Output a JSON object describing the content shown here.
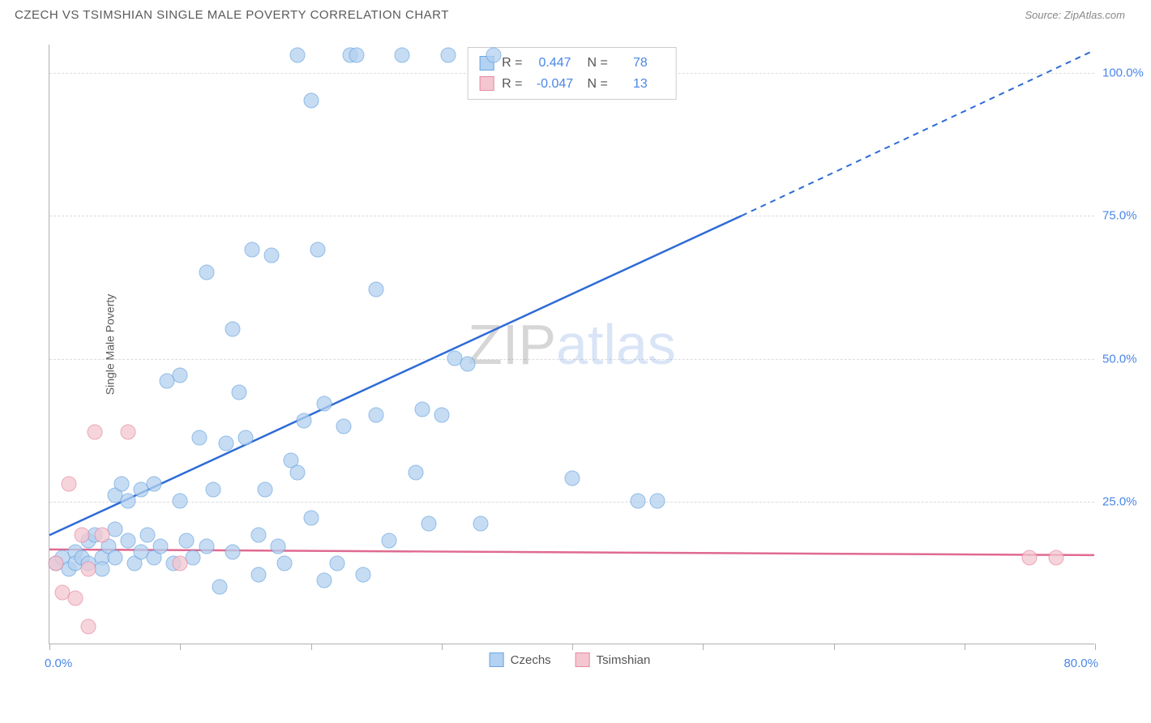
{
  "header": {
    "title": "CZECH VS TSIMSHIAN SINGLE MALE POVERTY CORRELATION CHART",
    "source_label": "Source: ",
    "source_name": "ZipAtlas.com"
  },
  "chart": {
    "type": "scatter",
    "ylabel": "Single Male Poverty",
    "xlim": [
      0,
      80
    ],
    "ylim": [
      0,
      105
    ],
    "xtick_positions_pct": [
      0,
      12.5,
      25,
      37.5,
      50,
      62.5,
      75,
      87.5,
      100
    ],
    "xaxis_min_label": "0.0%",
    "xaxis_max_label": "80.0%",
    "ytick_labels": [
      {
        "label": "25.0%",
        "value": 25
      },
      {
        "label": "50.0%",
        "value": 50
      },
      {
        "label": "75.0%",
        "value": 75
      },
      {
        "label": "100.0%",
        "value": 100
      }
    ],
    "grid_color": "#dcdcdc",
    "axis_color": "#b0b0b0",
    "background_color": "#ffffff",
    "watermark": {
      "part1": "Z",
      "part2": "IP",
      "part3": "atlas"
    },
    "series": [
      {
        "name": "Czechs",
        "legend_label": "Czechs",
        "marker_color": "#b3d1f0",
        "marker_border": "#6ca6e0",
        "line_color": "#2e6bd6",
        "r_label": "R = ",
        "r_value": "0.447",
        "n_label": "N = ",
        "n_value": "78",
        "trend": {
          "x1": 0,
          "y1": 19,
          "x2_solid": 53,
          "y2_solid": 75,
          "x2_dash": 80,
          "y2_dash": 104
        },
        "points": [
          {
            "x": 0.5,
            "y": 14
          },
          {
            "x": 1,
            "y": 15
          },
          {
            "x": 1.5,
            "y": 13
          },
          {
            "x": 2,
            "y": 16
          },
          {
            "x": 2,
            "y": 14
          },
          {
            "x": 2.5,
            "y": 15
          },
          {
            "x": 3,
            "y": 18
          },
          {
            "x": 3,
            "y": 14
          },
          {
            "x": 3.5,
            "y": 19
          },
          {
            "x": 4,
            "y": 15
          },
          {
            "x": 4,
            "y": 13
          },
          {
            "x": 4.5,
            "y": 17
          },
          {
            "x": 5,
            "y": 26
          },
          {
            "x": 5,
            "y": 20
          },
          {
            "x": 5,
            "y": 15
          },
          {
            "x": 5.5,
            "y": 28
          },
          {
            "x": 6,
            "y": 25
          },
          {
            "x": 6,
            "y": 18
          },
          {
            "x": 6.5,
            "y": 14
          },
          {
            "x": 7,
            "y": 27
          },
          {
            "x": 7,
            "y": 16
          },
          {
            "x": 7.5,
            "y": 19
          },
          {
            "x": 8,
            "y": 28
          },
          {
            "x": 8,
            "y": 15
          },
          {
            "x": 8.5,
            "y": 17
          },
          {
            "x": 9,
            "y": 46
          },
          {
            "x": 9.5,
            "y": 14
          },
          {
            "x": 10,
            "y": 47
          },
          {
            "x": 10,
            "y": 25
          },
          {
            "x": 10.5,
            "y": 18
          },
          {
            "x": 11,
            "y": 15
          },
          {
            "x": 11.5,
            "y": 36
          },
          {
            "x": 12,
            "y": 65
          },
          {
            "x": 12,
            "y": 17
          },
          {
            "x": 12.5,
            "y": 27
          },
          {
            "x": 13,
            "y": 10
          },
          {
            "x": 13.5,
            "y": 35
          },
          {
            "x": 14,
            "y": 55
          },
          {
            "x": 14,
            "y": 16
          },
          {
            "x": 14.5,
            "y": 44
          },
          {
            "x": 15,
            "y": 36
          },
          {
            "x": 15.5,
            "y": 69
          },
          {
            "x": 16,
            "y": 19
          },
          {
            "x": 16,
            "y": 12
          },
          {
            "x": 16.5,
            "y": 27
          },
          {
            "x": 17,
            "y": 68
          },
          {
            "x": 17.5,
            "y": 17
          },
          {
            "x": 18,
            "y": 14
          },
          {
            "x": 18.5,
            "y": 32
          },
          {
            "x": 19,
            "y": 30
          },
          {
            "x": 19,
            "y": 103
          },
          {
            "x": 19.5,
            "y": 39
          },
          {
            "x": 20,
            "y": 95
          },
          {
            "x": 20,
            "y": 22
          },
          {
            "x": 20.5,
            "y": 69
          },
          {
            "x": 21,
            "y": 42
          },
          {
            "x": 21,
            "y": 11
          },
          {
            "x": 22,
            "y": 14
          },
          {
            "x": 22.5,
            "y": 38
          },
          {
            "x": 23,
            "y": 103
          },
          {
            "x": 23.5,
            "y": 103
          },
          {
            "x": 24,
            "y": 12
          },
          {
            "x": 25,
            "y": 62
          },
          {
            "x": 25,
            "y": 40
          },
          {
            "x": 26,
            "y": 18
          },
          {
            "x": 27,
            "y": 103
          },
          {
            "x": 28,
            "y": 30
          },
          {
            "x": 28.5,
            "y": 41
          },
          {
            "x": 29,
            "y": 21
          },
          {
            "x": 30,
            "y": 40
          },
          {
            "x": 30.5,
            "y": 103
          },
          {
            "x": 31,
            "y": 50
          },
          {
            "x": 32,
            "y": 49
          },
          {
            "x": 33,
            "y": 21
          },
          {
            "x": 34,
            "y": 103
          },
          {
            "x": 40,
            "y": 29
          },
          {
            "x": 45,
            "y": 25
          },
          {
            "x": 46.5,
            "y": 25
          }
        ]
      },
      {
        "name": "Tsimshian",
        "legend_label": "Tsimshian",
        "marker_color": "#f4c6d0",
        "marker_border": "#e68aa5",
        "line_color": "#e06a90",
        "r_label": "R = ",
        "r_value": "-0.047",
        "n_label": "N = ",
        "n_value": "13",
        "trend": {
          "x1": 0,
          "y1": 16.5,
          "x2_solid": 80,
          "y2_solid": 15.5,
          "x2_dash": 80,
          "y2_dash": 15.5
        },
        "points": [
          {
            "x": 0.5,
            "y": 14
          },
          {
            "x": 1,
            "y": 9
          },
          {
            "x": 1.5,
            "y": 28
          },
          {
            "x": 2,
            "y": 8
          },
          {
            "x": 2.5,
            "y": 19
          },
          {
            "x": 3,
            "y": 13
          },
          {
            "x": 3,
            "y": 3
          },
          {
            "x": 3.5,
            "y": 37
          },
          {
            "x": 4,
            "y": 19
          },
          {
            "x": 6,
            "y": 37
          },
          {
            "x": 10,
            "y": 14
          },
          {
            "x": 75,
            "y": 15
          },
          {
            "x": 77,
            "y": 15
          }
        ]
      }
    ]
  }
}
